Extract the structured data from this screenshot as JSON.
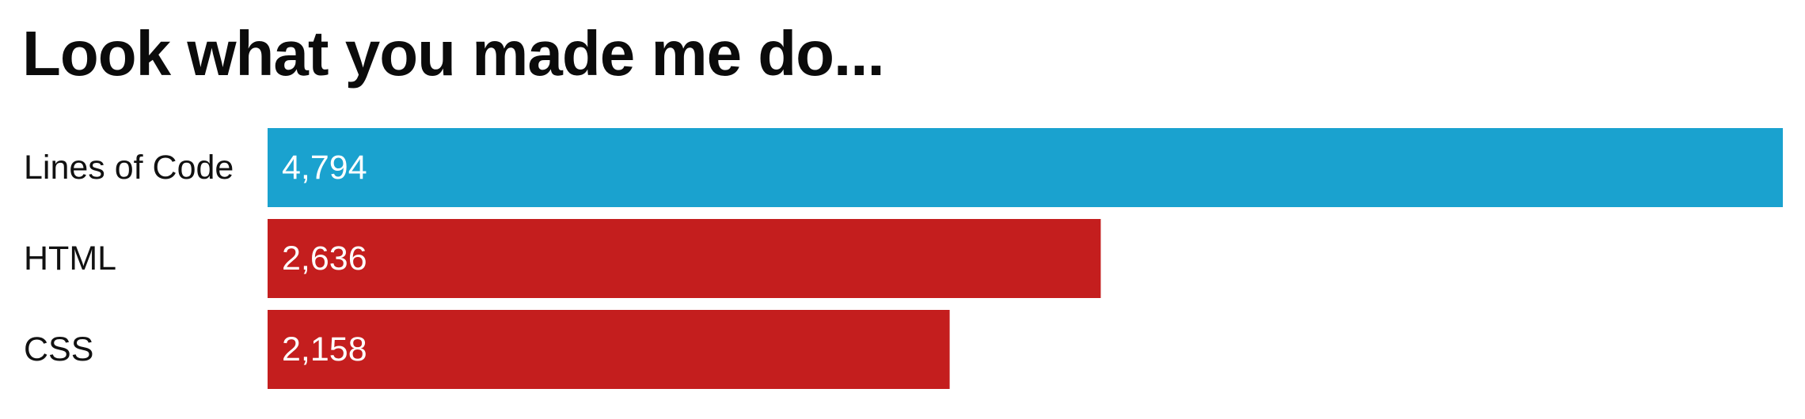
{
  "title": "Look what you made me do...",
  "chart_data": {
    "type": "bar",
    "orientation": "horizontal",
    "categories": [
      "Lines of Code",
      "HTML",
      "CSS"
    ],
    "values": [
      4794,
      2636,
      2158
    ],
    "value_labels": [
      "4,794",
      "2,636",
      "2,158"
    ],
    "colors": [
      "#1aa2cf",
      "#c41e1e",
      "#c41e1e"
    ],
    "xlim": [
      0,
      4794
    ],
    "grid": false,
    "legend": "none"
  }
}
